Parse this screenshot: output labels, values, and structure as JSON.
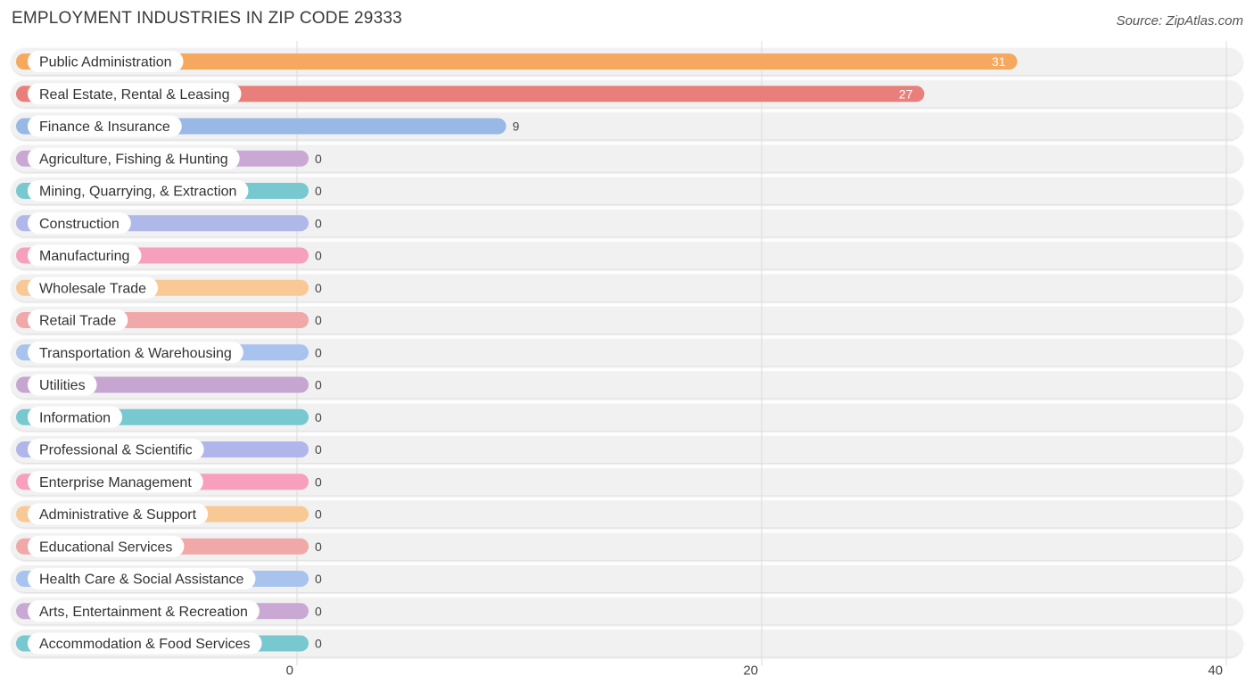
{
  "title": "EMPLOYMENT INDUSTRIES IN ZIP CODE 29333",
  "source": "Source: ZipAtlas.com",
  "chart_data": {
    "type": "bar",
    "orientation": "horizontal",
    "categories": [
      "Public Administration",
      "Real Estate, Rental & Leasing",
      "Finance & Insurance",
      "Agriculture, Fishing & Hunting",
      "Mining, Quarrying, & Extraction",
      "Construction",
      "Manufacturing",
      "Wholesale Trade",
      "Retail Trade",
      "Transportation & Warehousing",
      "Utilities",
      "Information",
      "Professional & Scientific",
      "Enterprise Management",
      "Administrative & Support",
      "Educational Services",
      "Health Care & Social Assistance",
      "Arts, Entertainment & Recreation",
      "Accommodation & Food Services"
    ],
    "values": [
      31,
      27,
      9,
      0,
      0,
      0,
      0,
      0,
      0,
      0,
      0,
      0,
      0,
      0,
      0,
      0,
      0,
      0,
      0
    ],
    "value_labels": [
      "31",
      "27",
      "9",
      "0",
      "0",
      "0",
      "0",
      "0",
      "0",
      "0",
      "0",
      "0",
      "0",
      "0",
      "0",
      "0",
      "0",
      "0",
      "0"
    ],
    "colors": [
      "#f6a95e",
      "#e97f7a",
      "#98b8e6",
      "#c9a9d3",
      "#77c9cf",
      "#b0b8ea",
      "#f7a0bd",
      "#f9c995",
      "#f0a8a8",
      "#a7c3ee",
      "#c6a5d1",
      "#77c9cf",
      "#b1b6ea",
      "#f7a0bd",
      "#f9c995",
      "#f0a8a8",
      "#a7c3ee",
      "#c9a9d3",
      "#77c9cf"
    ],
    "xlim": [
      0,
      40
    ],
    "xticks": [
      0,
      20,
      40
    ],
    "xtick_labels": [
      "0",
      "20",
      "40"
    ],
    "grid": true,
    "xlabel": "",
    "ylabel": ""
  }
}
